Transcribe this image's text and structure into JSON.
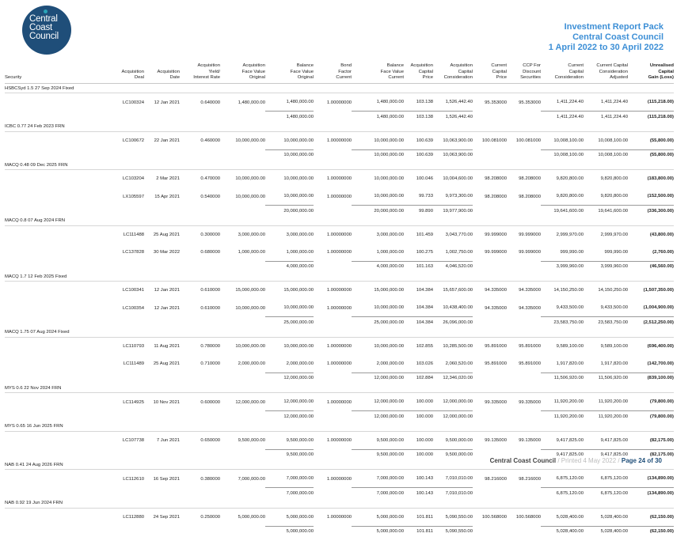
{
  "logo": {
    "lines": [
      "Central",
      "Coast",
      "Council"
    ]
  },
  "report_header": {
    "title": "Investment Report Pack",
    "org": "Central Coast Council",
    "period": "1 April 2022 to 30 April 2022"
  },
  "columns": [
    "Security",
    "Acquisition\nDeal",
    "Acquisition\nDate",
    "Acquisition\nYield/\nInterest Rate",
    "Acquisition\nFace Value\nOriginal",
    "Balance\nFace Value\nOriginal",
    "Bond\nFactor\nCurrent",
    "Balance\nFace Value\nCurrent",
    "Acquisition\nCapital\nPrice",
    "Acquisition\nCapital\nConsideration",
    "Current\nCapital\nPrice",
    "CCP For\nDiscount\nSecurities",
    "Current\nCapital\nConsideration",
    "Current Capital\nConsideration\nAdjusted",
    "Unrealised\nCapital\nGain (Loss)"
  ],
  "groups": [
    {
      "name": "HSBCSyd 1.5 27 Sep 2024 Fixed",
      "rows": [
        [
          "LC100324",
          "12 Jan 2021",
          "0.640000",
          "1,480,000.00",
          "1,480,000.00",
          "1.00000000",
          "1,480,000.00",
          "103.138",
          "1,526,442.40",
          "95.353000",
          "95.353000",
          "1,411,224.40",
          "1,411,224.40",
          "(115,218.00)"
        ]
      ],
      "total": {
        "bal_orig": "1,480,000.00",
        "bal_curr": "1,480,000.00",
        "price": "103.138",
        "consid": "1,526,442.40",
        "curr_consid": "1,411,224.40",
        "adj": "1,411,224.40",
        "gain": "(115,218.00)"
      }
    },
    {
      "name": "ICBC 0.77 24 Feb 2023 FRN",
      "rows": [
        [
          "LC100672",
          "22 Jan 2021",
          "0.460000",
          "10,000,000.00",
          "10,000,000.00",
          "1.00000000",
          "10,000,000.00",
          "100.639",
          "10,063,900.00",
          "100.081000",
          "100.081000",
          "10,008,100.00",
          "10,008,100.00",
          "(55,800.00)"
        ]
      ],
      "total": {
        "bal_orig": "10,000,000.00",
        "bal_curr": "10,000,000.00",
        "price": "100.639",
        "consid": "10,063,900.00",
        "curr_consid": "10,008,100.00",
        "adj": "10,008,100.00",
        "gain": "(55,800.00)"
      }
    },
    {
      "name": "MACQ 0.48 09 Dec 2025 FRN",
      "rows": [
        [
          "LC103204",
          "2 Mar 2021",
          "0.470000",
          "10,000,000.00",
          "10,000,000.00",
          "1.00000000",
          "10,000,000.00",
          "100.046",
          "10,004,600.00",
          "98.208000",
          "98.208000",
          "9,820,800.00",
          "9,820,800.00",
          "(183,800.00)"
        ],
        [
          "LX105597",
          "15 Apr 2021",
          "0.540000",
          "10,000,000.00",
          "10,000,000.00",
          "1.00000000",
          "10,000,000.00",
          "99.733",
          "9,973,300.00",
          "98.208000",
          "98.208000",
          "9,820,800.00",
          "9,820,800.00",
          "(152,500.00)"
        ]
      ],
      "total": {
        "bal_orig": "20,000,000.00",
        "bal_curr": "20,000,000.00",
        "price": "99.890",
        "consid": "19,977,900.00",
        "curr_consid": "19,641,600.00",
        "adj": "19,641,600.00",
        "gain": "(336,300.00)"
      }
    },
    {
      "name": "MACQ 0.8 07 Aug 2024 FRN",
      "rows": [
        [
          "LC111488",
          "25 Aug 2021",
          "0.300000",
          "3,000,000.00",
          "3,000,000.00",
          "1.00000000",
          "3,000,000.00",
          "101.459",
          "3,043,770.00",
          "99.999000",
          "99.999000",
          "2,999,970.00",
          "2,999,970.00",
          "(43,800.00)"
        ],
        [
          "LC137828",
          "30 Mar 2022",
          "0.680000",
          "1,000,000.00",
          "1,000,000.00",
          "1.00000000",
          "1,000,000.00",
          "100.275",
          "1,002,750.00",
          "99.999000",
          "99.999000",
          "999,990.00",
          "999,990.00",
          "(2,760.00)"
        ]
      ],
      "total": {
        "bal_orig": "4,000,000.00",
        "bal_curr": "4,000,000.00",
        "price": "101.163",
        "consid": "4,046,520.00",
        "curr_consid": "3,999,960.00",
        "adj": "3,999,960.00",
        "gain": "(46,560.00)"
      }
    },
    {
      "name": "MACQ 1.7 12 Feb 2025 Fixed",
      "rows": [
        [
          "LC100341",
          "12 Jan 2021",
          "0.610000",
          "15,000,000.00",
          "15,000,000.00",
          "1.00000000",
          "15,000,000.00",
          "104.384",
          "15,657,600.00",
          "94.335000",
          "94.335000",
          "14,150,250.00",
          "14,150,250.00",
          "(1,507,350.00)"
        ],
        [
          "LC100354",
          "12 Jan 2021",
          "0.610000",
          "10,000,000.00",
          "10,000,000.00",
          "1.00000000",
          "10,000,000.00",
          "104.384",
          "10,438,400.00",
          "94.335000",
          "94.335000",
          "9,433,500.00",
          "9,433,500.00",
          "(1,004,900.00)"
        ]
      ],
      "total": {
        "bal_orig": "25,000,000.00",
        "bal_curr": "25,000,000.00",
        "price": "104.384",
        "consid": "26,096,000.00",
        "curr_consid": "23,583,750.00",
        "adj": "23,583,750.00",
        "gain": "(2,512,250.00)"
      }
    },
    {
      "name": "MACQ 1.75 07 Aug 2024 Fixed",
      "rows": [
        [
          "LC110793",
          "11 Aug 2021",
          "0.780000",
          "10,000,000.00",
          "10,000,000.00",
          "1.00000000",
          "10,000,000.00",
          "102.855",
          "10,285,500.00",
          "95.891000",
          "95.891000",
          "9,589,100.00",
          "9,589,100.00",
          "(696,400.00)"
        ],
        [
          "LC111489",
          "25 Aug 2021",
          "0.710000",
          "2,000,000.00",
          "2,000,000.00",
          "1.00000000",
          "2,000,000.00",
          "103.026",
          "2,060,520.00",
          "95.891000",
          "95.891000",
          "1,917,820.00",
          "1,917,820.00",
          "(142,700.00)"
        ]
      ],
      "total": {
        "bal_orig": "12,000,000.00",
        "bal_curr": "12,000,000.00",
        "price": "102.884",
        "consid": "12,346,020.00",
        "curr_consid": "11,506,920.00",
        "adj": "11,506,920.00",
        "gain": "(839,100.00)"
      }
    },
    {
      "name": "MYS 0.6 22 Nov 2024 FRN",
      "rows": [
        [
          "LC114925",
          "10 Nov 2021",
          "0.600000",
          "12,000,000.00",
          "12,000,000.00",
          "1.00000000",
          "12,000,000.00",
          "100.000",
          "12,000,000.00",
          "99.335000",
          "99.335000",
          "11,920,200.00",
          "11,920,200.00",
          "(79,800.00)"
        ]
      ],
      "total": {
        "bal_orig": "12,000,000.00",
        "bal_curr": "12,000,000.00",
        "price": "100.000",
        "consid": "12,000,000.00",
        "curr_consid": "11,920,200.00",
        "adj": "11,920,200.00",
        "gain": "(79,800.00)"
      }
    },
    {
      "name": "MYS 0.65 16 Jun 2025 FRN",
      "rows": [
        [
          "LC107738",
          "7 Jun 2021",
          "0.650000",
          "9,500,000.00",
          "9,500,000.00",
          "1.00000000",
          "9,500,000.00",
          "100.000",
          "9,500,000.00",
          "99.135000",
          "99.135000",
          "9,417,825.00",
          "9,417,825.00",
          "(82,175.00)"
        ]
      ],
      "total": {
        "bal_orig": "9,500,000.00",
        "bal_curr": "9,500,000.00",
        "price": "100.000",
        "consid": "9,500,000.00",
        "curr_consid": "9,417,825.00",
        "adj": "9,417,825.00",
        "gain": "(82,175.00)"
      }
    },
    {
      "name": "NAB 0.41 24 Aug 2026 FRN",
      "rows": [
        [
          "LC112610",
          "16 Sep 2021",
          "0.380000",
          "7,000,000.00",
          "7,000,000.00",
          "1.00000000",
          "7,000,000.00",
          "100.143",
          "7,010,010.00",
          "98.216000",
          "98.216000",
          "6,875,120.00",
          "6,875,120.00",
          "(134,890.00)"
        ]
      ],
      "total": {
        "bal_orig": "7,000,000.00",
        "bal_curr": "7,000,000.00",
        "price": "100.143",
        "consid": "7,010,010.00",
        "curr_consid": "6,875,120.00",
        "adj": "6,875,120.00",
        "gain": "(134,890.00)"
      }
    },
    {
      "name": "NAB 0.92 19 Jun 2024 FRN",
      "rows": [
        [
          "LC112880",
          "24 Sep 2021",
          "0.250000",
          "5,000,000.00",
          "5,000,000.00",
          "1.00000000",
          "5,000,000.00",
          "101.811",
          "5,090,550.00",
          "100.568000",
          "100.568000",
          "5,028,400.00",
          "5,028,400.00",
          "(62,150.00)"
        ]
      ],
      "total": {
        "bal_orig": "5,000,000.00",
        "bal_curr": "5,000,000.00",
        "price": "101.811",
        "consid": "5,090,550.00",
        "curr_consid": "5,028,400.00",
        "adj": "5,028,400.00",
        "gain": "(62,150.00)"
      }
    }
  ],
  "footer": {
    "org": "Central Coast Council",
    "printed": " / Printed 4 May 2022 / ",
    "page": "Page 24 of 30"
  },
  "colors": {
    "accent": "#3d8fd6",
    "logo_bg": "#1f4e79",
    "logo_dot": "#2aa3b8"
  }
}
